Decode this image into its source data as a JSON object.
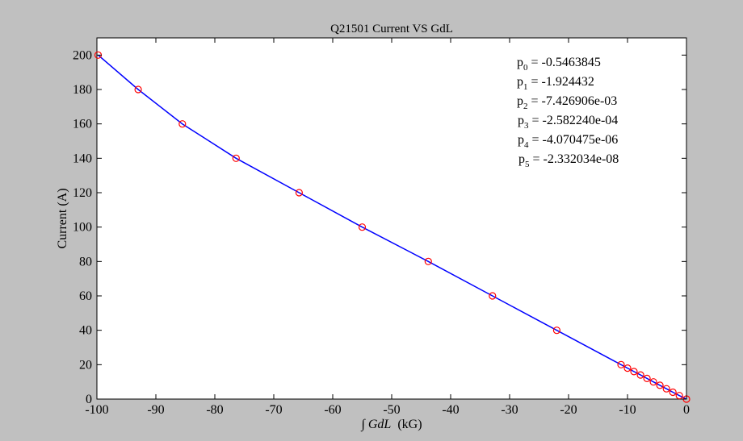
{
  "chart_data": {
    "type": "line",
    "title": "Q21501 Current VS GdL",
    "xlabel_integral": "∫",
    "xlabel_italic": "GdL",
    "xlabel_unit": "(kG)",
    "ylabel": "Current (A)",
    "xlim": [
      -100,
      0
    ],
    "ylim": [
      0,
      210
    ],
    "xticks": [
      -100,
      -90,
      -80,
      -70,
      -60,
      -50,
      -40,
      -30,
      -20,
      -10,
      0
    ],
    "yticks": [
      0,
      20,
      40,
      60,
      80,
      100,
      120,
      140,
      160,
      180,
      200
    ],
    "grid": false,
    "series": [
      {
        "kind": "fit-line",
        "color": "#0000ff",
        "x": [
          -99.8,
          -93.0,
          -85.5,
          -76.4,
          -65.7,
          -55.0,
          -43.8,
          -32.9,
          -22.0,
          -11.1,
          -10.0,
          -8.9,
          -7.8,
          -6.7,
          -5.6,
          -4.5,
          -3.4,
          -2.3,
          -1.2,
          0.0
        ],
        "y": [
          200,
          180,
          160,
          140,
          120,
          100,
          80,
          60,
          40,
          20,
          18,
          16,
          14,
          12,
          10,
          8,
          6,
          4,
          2,
          0
        ]
      },
      {
        "kind": "markers",
        "marker": "circle",
        "color": "#ff0000",
        "x": [
          -99.8,
          -93.0,
          -85.5,
          -76.4,
          -65.7,
          -55.0,
          -43.8,
          -32.9,
          -22.0,
          -11.1,
          -10.0,
          -8.9,
          -7.8,
          -6.7,
          -5.6,
          -4.5,
          -3.4,
          -2.3,
          -1.2,
          0.0
        ],
        "y": [
          200,
          180,
          160,
          140,
          120,
          100,
          80,
          60,
          40,
          20,
          18,
          16,
          14,
          12,
          10,
          8,
          6,
          4,
          2,
          0
        ]
      }
    ],
    "annotations": [
      {
        "name": "p",
        "sub": "0",
        "value": " = -0.5463845"
      },
      {
        "name": "p",
        "sub": "1",
        "value": " = -1.924432"
      },
      {
        "name": "p",
        "sub": "2",
        "value": " = -7.426906e-03"
      },
      {
        "name": "p",
        "sub": "3",
        "value": " = -2.582240e-04"
      },
      {
        "name": "p",
        "sub": "4",
        "value": " = -4.070475e-06"
      },
      {
        "name": "p",
        "sub": "5",
        "value": " = -2.332034e-08"
      }
    ],
    "colors": {
      "figure_background": "#c0c0c0",
      "axes_background": "#ffffff",
      "line": "#0000ff",
      "marker": "#ff0000"
    }
  }
}
